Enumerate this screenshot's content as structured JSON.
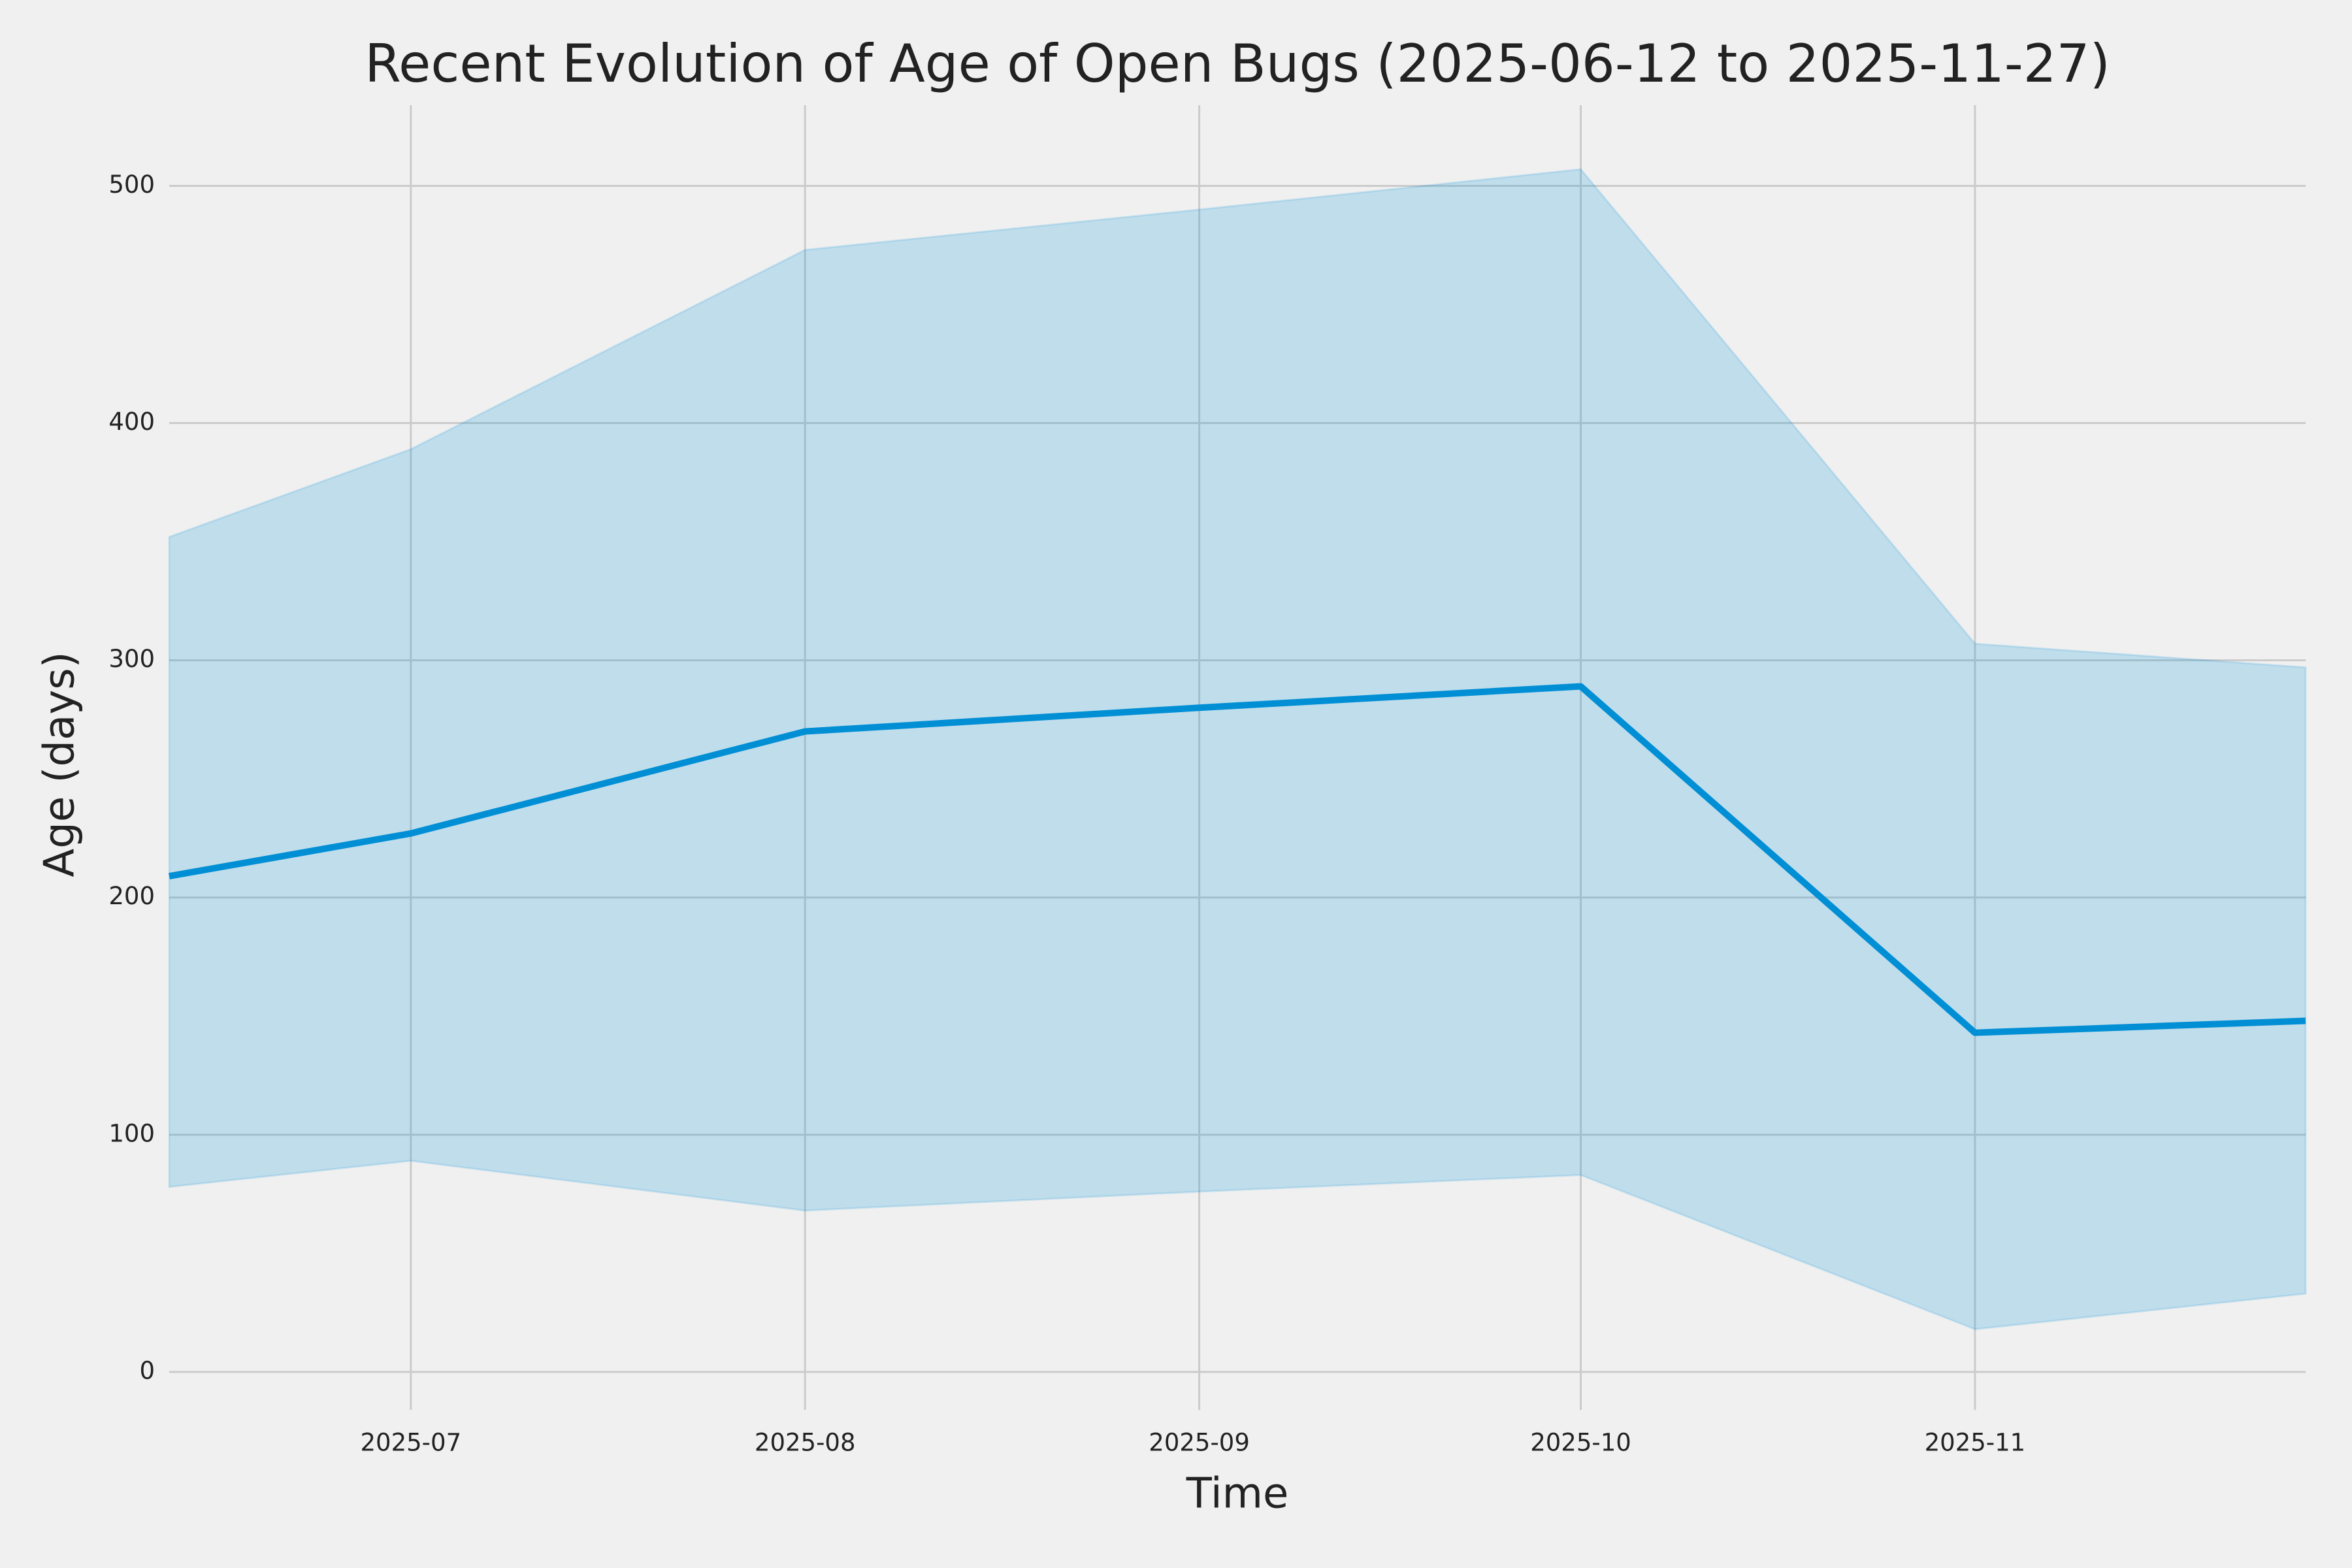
{
  "chart_data": {
    "type": "line",
    "title": "Recent Evolution of Age of Open Bugs (2025-06-12 to 2025-11-27)",
    "xlabel": "Time",
    "ylabel": "Age (days)",
    "x": [
      "2025-06-12",
      "2025-07",
      "2025-08",
      "2025-09",
      "2025-10",
      "2025-11",
      "2025-11-27"
    ],
    "series": [
      {
        "color": "#008fd5",
        "values": [
          209,
          227,
          270,
          280,
          289,
          143,
          148
        ]
      }
    ],
    "band": {
      "color": "#008fd5",
      "lower": [
        78,
        89,
        68,
        76,
        83,
        18,
        33
      ],
      "upper": [
        352,
        389,
        473,
        490,
        507,
        307,
        297
      ]
    },
    "xlim": [
      "2025-06-12",
      "2025-11-27"
    ],
    "xticks": [
      "2025-07",
      "2025-08",
      "2025-09",
      "2025-10",
      "2025-11"
    ],
    "ylim": [
      -16,
      534
    ],
    "yticks": [
      0,
      100,
      200,
      300,
      400,
      500
    ],
    "grid": true
  }
}
